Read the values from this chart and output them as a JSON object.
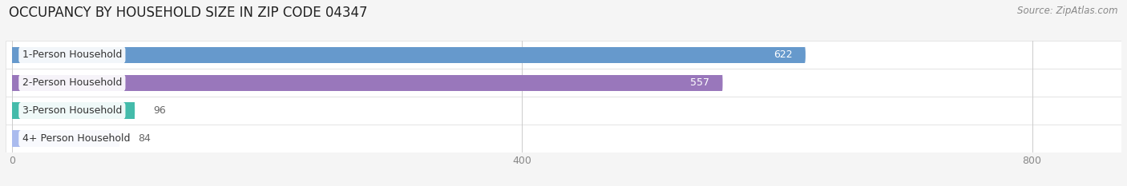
{
  "title": "OCCUPANCY BY HOUSEHOLD SIZE IN ZIP CODE 04347",
  "source": "Source: ZipAtlas.com",
  "categories": [
    "1-Person Household",
    "2-Person Household",
    "3-Person Household",
    "4+ Person Household"
  ],
  "values": [
    622,
    557,
    96,
    84
  ],
  "bar_colors": [
    "#6699cc",
    "#9977bb",
    "#44bbaa",
    "#aabbee"
  ],
  "xlim": [
    0,
    870
  ],
  "xticks": [
    0,
    400,
    800
  ],
  "background_color": "#f5f5f5",
  "row_bg_color": "#ffffff",
  "row_border_color": "#dddddd",
  "title_fontsize": 12,
  "source_fontsize": 8.5,
  "label_fontsize": 9,
  "value_fontsize": 9,
  "bar_height": 0.58,
  "bar_label_color_inside": "#ffffff",
  "bar_label_color_outside": "#666666",
  "tick_color": "#888888"
}
